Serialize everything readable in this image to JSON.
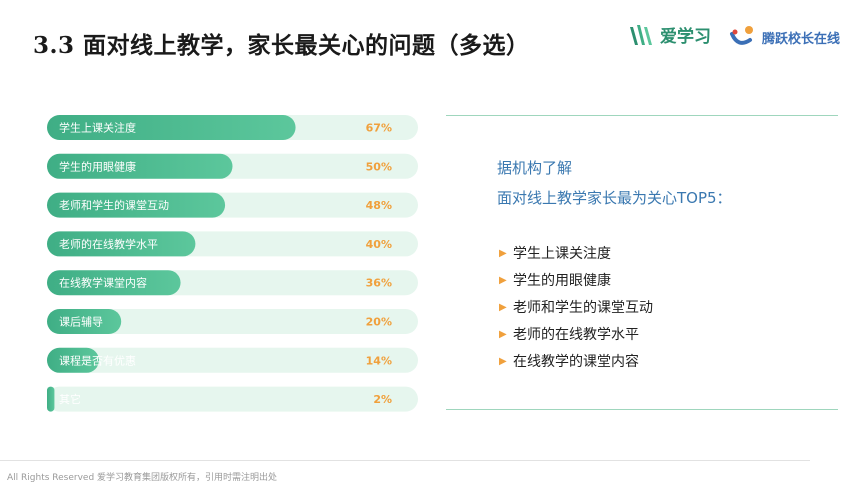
{
  "header": {
    "title": "3.3 面对线上教学，家长最关心的问题（多选）",
    "logo_aixuexi": "爱学习",
    "logo_tengyue": "腾跃校长在线"
  },
  "colors": {
    "bar_fill_start": "#3fae85",
    "bar_fill_end": "#5cc79c",
    "bar_track": "#e6f6ee",
    "value_label": "#f0a03c",
    "accent_blue": "#3a78b0"
  },
  "chart_data": {
    "type": "bar",
    "orientation": "horizontal",
    "categories": [
      "学生上课关注度",
      "学生的用眼健康",
      "老师和学生的课堂互动",
      "老师的在线教学水平",
      "在线教学课堂内容",
      "课后辅导",
      "课程是否有优惠",
      "其它"
    ],
    "values": [
      67,
      50,
      48,
      40,
      36,
      20,
      14,
      2
    ],
    "value_labels": [
      "67%",
      "50%",
      "48%",
      "40%",
      "36%",
      "20%",
      "14%",
      "2%"
    ],
    "xlim": [
      0,
      100
    ],
    "grid": false
  },
  "panel": {
    "intro_line1": "据机构了解",
    "intro_line2": "面对线上教学家长最为关心TOP5：",
    "items": [
      "学生上课关注度",
      "学生的用眼健康",
      "老师和学生的课堂互动",
      "老师的在线教学水平",
      "在线教学的课堂内容"
    ]
  },
  "footer": {
    "copyright": "All Rights Reserved 爱学习教育集团版权所有，引用时需注明出处"
  }
}
